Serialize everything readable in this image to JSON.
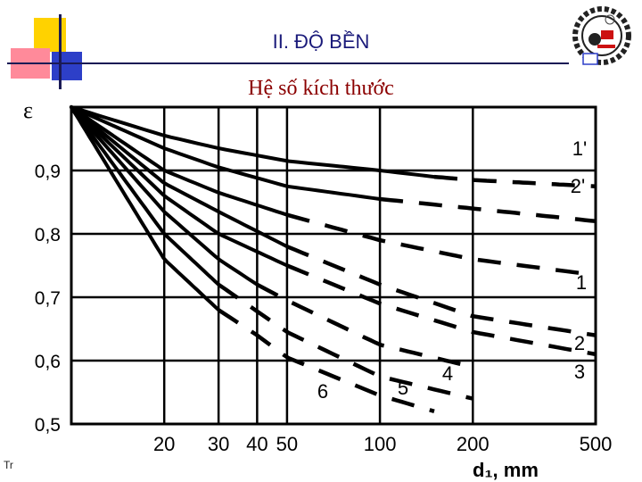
{
  "slide": {
    "title": "II. ĐỘ BỀN",
    "subtitle": "Hệ số kích thước",
    "footer_text": "Tr"
  },
  "colors": {
    "title": "#1a1a7a",
    "subtitle": "#8b0000",
    "accent_yellow": "#ffd200",
    "accent_pink": "#ff8a9a",
    "accent_blue": "#2d3fc8"
  },
  "chart_data": {
    "type": "line",
    "title": "",
    "ylabel": "ε",
    "xlabel": "d₁, mm",
    "x_scale": "log",
    "ylim": [
      0.5,
      1.0
    ],
    "y_ticks": [
      "0,9",
      "0,8",
      "0,7",
      "0,6",
      "0,5"
    ],
    "y_tick_values": [
      0.9,
      0.8,
      0.7,
      0.6,
      0.5
    ],
    "x_ticks": [
      "20",
      "30",
      "40",
      "50",
      "100",
      "200",
      "500"
    ],
    "x_tick_values": [
      20,
      30,
      40,
      50,
      100,
      200,
      500
    ],
    "grid": true,
    "series": [
      {
        "name": "1'",
        "solid_to": 150,
        "points": [
          [
            10,
            1.0
          ],
          [
            20,
            0.955
          ],
          [
            30,
            0.935
          ],
          [
            50,
            0.915
          ],
          [
            100,
            0.9
          ],
          [
            150,
            0.89
          ],
          [
            200,
            0.885
          ],
          [
            500,
            0.875
          ]
        ]
      },
      {
        "name": "2'",
        "solid_to": 100,
        "points": [
          [
            10,
            1.0
          ],
          [
            20,
            0.935
          ],
          [
            30,
            0.905
          ],
          [
            50,
            0.875
          ],
          [
            100,
            0.855
          ],
          [
            200,
            0.84
          ],
          [
            500,
            0.82
          ]
        ]
      },
      {
        "name": "1",
        "solid_to": 50,
        "points": [
          [
            10,
            1.0
          ],
          [
            20,
            0.9
          ],
          [
            30,
            0.865
          ],
          [
            50,
            0.83
          ],
          [
            100,
            0.79
          ],
          [
            200,
            0.76
          ],
          [
            500,
            0.735
          ]
        ]
      },
      {
        "name": "2",
        "solid_to": 50,
        "points": [
          [
            10,
            1.0
          ],
          [
            20,
            0.88
          ],
          [
            30,
            0.835
          ],
          [
            50,
            0.78
          ],
          [
            100,
            0.72
          ],
          [
            200,
            0.67
          ],
          [
            500,
            0.64
          ]
        ]
      },
      {
        "name": "3",
        "solid_to": 50,
        "points": [
          [
            10,
            1.0
          ],
          [
            20,
            0.86
          ],
          [
            30,
            0.8
          ],
          [
            50,
            0.75
          ],
          [
            100,
            0.69
          ],
          [
            200,
            0.645
          ],
          [
            500,
            0.61
          ]
        ]
      },
      {
        "name": "4",
        "solid_to": 40,
        "points": [
          [
            10,
            1.0
          ],
          [
            20,
            0.835
          ],
          [
            30,
            0.76
          ],
          [
            40,
            0.72
          ],
          [
            50,
            0.695
          ],
          [
            100,
            0.625
          ],
          [
            200,
            0.59
          ]
        ]
      },
      {
        "name": "5",
        "solid_to": 30,
        "points": [
          [
            10,
            1.0
          ],
          [
            20,
            0.8
          ],
          [
            30,
            0.72
          ],
          [
            50,
            0.645
          ],
          [
            100,
            0.575
          ],
          [
            200,
            0.54
          ]
        ]
      },
      {
        "name": "6",
        "solid_to": 30,
        "points": [
          [
            10,
            1.0
          ],
          [
            20,
            0.76
          ],
          [
            30,
            0.68
          ],
          [
            40,
            0.64
          ],
          [
            50,
            0.605
          ],
          [
            100,
            0.545
          ],
          [
            150,
            0.52
          ]
        ]
      }
    ]
  }
}
